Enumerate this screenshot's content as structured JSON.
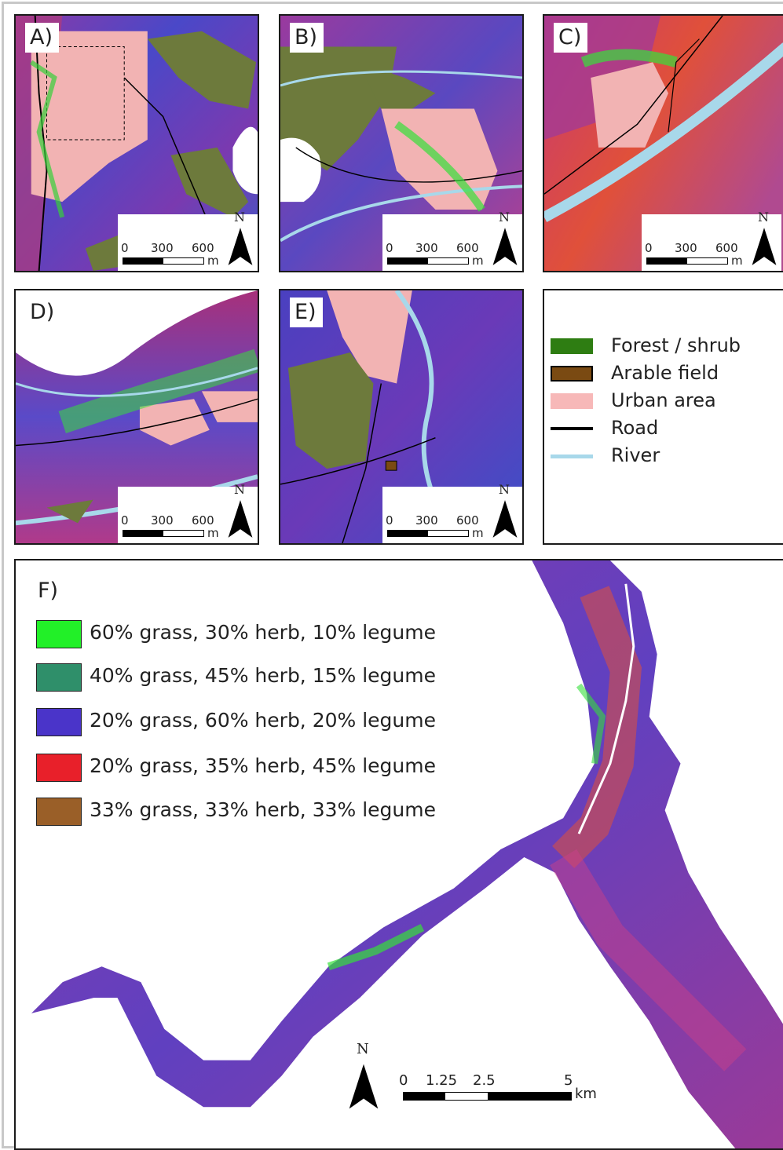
{
  "panels": {
    "A": {
      "label": "A)"
    },
    "B": {
      "label": "B)"
    },
    "C": {
      "label": "C)"
    },
    "D": {
      "label": "D)"
    },
    "E": {
      "label": "E)"
    },
    "F": {
      "label": "F)"
    }
  },
  "small_scale": {
    "ticks": [
      "0",
      "300",
      "600"
    ],
    "unit": "m",
    "north": "N"
  },
  "map_legend": {
    "items": [
      {
        "label": "Forest / shrub",
        "color": "#2e7d12"
      },
      {
        "label": "Arable field",
        "color": "#7a4a12"
      },
      {
        "label": "Urban area",
        "color": "#f7b8b8"
      },
      {
        "label": "Road",
        "color": "#000000"
      },
      {
        "label": "River",
        "color": "#a8d8ea"
      }
    ]
  },
  "mixture_legend": {
    "items": [
      {
        "label": "60% grass, 30% herb, 10% legume",
        "color": "#22f028"
      },
      {
        "label": "40% grass, 45% herb, 15% legume",
        "color": "#2f8f6a"
      },
      {
        "label": "20% grass, 60% herb, 20% legume",
        "color": "#4a34c9"
      },
      {
        "label": "20% grass, 35% herb, 45% legume",
        "color": "#e8202a"
      },
      {
        "label": "33% grass, 33% herb, 33% legume",
        "color": "#9a5f28"
      }
    ]
  },
  "large_scale": {
    "ticks": [
      "0",
      "1.25",
      "2.5",
      "5"
    ],
    "unit": "km",
    "north": "N"
  }
}
